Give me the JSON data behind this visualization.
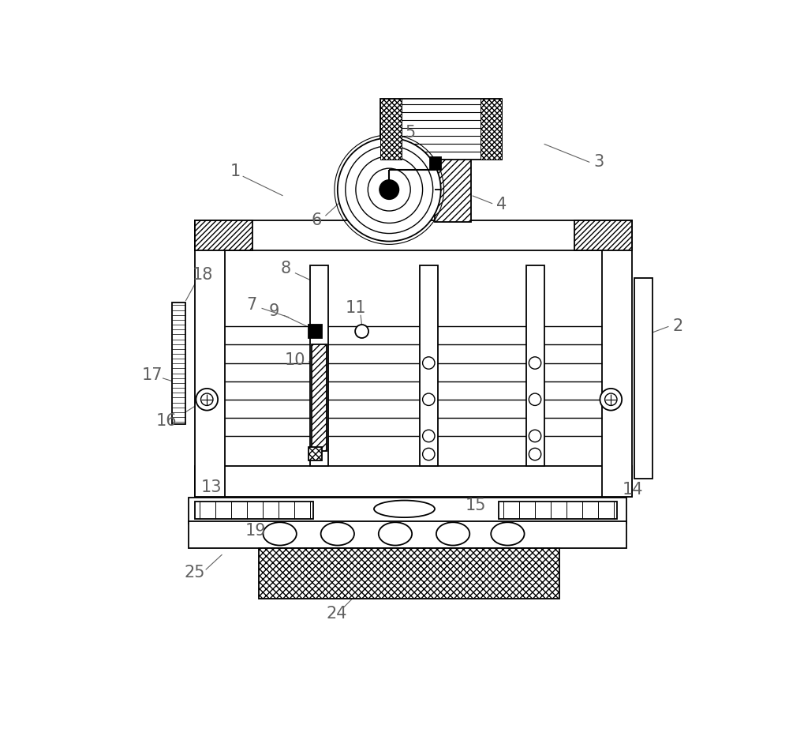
{
  "bg": "#ffffff",
  "lc": "#000000",
  "gc": "#707070",
  "lw": 1.3,
  "fig_w": 10.0,
  "fig_h": 9.42,
  "label_fs": 15
}
